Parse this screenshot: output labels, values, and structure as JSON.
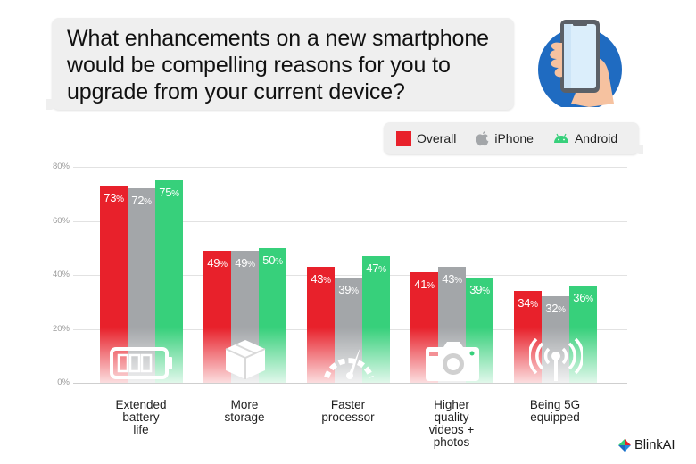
{
  "question": {
    "lines": [
      "What enhancements on a new smartphone",
      "would be compelling reasons for you to",
      "upgrade from your current device?"
    ]
  },
  "header_art": {
    "icon": "hand-holding-phone-icon",
    "circle_color": "#1f6bc1"
  },
  "legend": {
    "items": [
      {
        "label": "Overall",
        "icon": "red-square",
        "color": "#e8212b"
      },
      {
        "label": "iPhone",
        "icon": "apple-logo-icon",
        "color": "#a3a6a9"
      },
      {
        "label": "Android",
        "icon": "android-logo-icon",
        "color": "#37d07b"
      }
    ]
  },
  "colors": {
    "overall": "#e8212b",
    "iphone": "#a3a6a9",
    "android": "#37d07b",
    "grid": "#e2e2e2",
    "tick": "#9a9a9a"
  },
  "chart_data": {
    "type": "bar",
    "title": "What enhancements on a new smartphone would be compelling reasons for you to upgrade from your current device?",
    "xlabel": "",
    "ylabel": "",
    "ylim": [
      0,
      80
    ],
    "y_ticks": [
      "0%",
      "20%",
      "40%",
      "60%",
      "80%"
    ],
    "grid": true,
    "legend_position": "top-right",
    "categories": [
      "Extended battery life",
      "More storage",
      "Faster processor",
      "Higher quality videos + photos",
      "Being 5G equipped"
    ],
    "category_icons": [
      "battery-icon",
      "box-icon",
      "speedometer-icon",
      "camera-icon",
      "signal-icon"
    ],
    "series": [
      {
        "name": "Overall",
        "values": [
          73,
          49,
          43,
          41,
          34
        ]
      },
      {
        "name": "iPhone",
        "values": [
          72,
          49,
          39,
          43,
          32
        ]
      },
      {
        "name": "Android",
        "values": [
          75,
          50,
          47,
          39,
          36
        ]
      }
    ]
  },
  "labels": {
    "x": [
      [
        "Extended",
        "battery",
        "life"
      ],
      [
        "More",
        "storage"
      ],
      [
        "Faster",
        "processor"
      ],
      [
        "Higher",
        "quality",
        "videos +",
        "photos"
      ],
      [
        "Being 5G",
        "equipped"
      ]
    ],
    "bars": [
      [
        "73",
        "72",
        "75"
      ],
      [
        "49",
        "49",
        "50"
      ],
      [
        "43",
        "39",
        "47"
      ],
      [
        "41",
        "43",
        "39"
      ],
      [
        "34",
        "32",
        "36"
      ]
    ],
    "pct": "%"
  },
  "brand": {
    "name": "BlinkAI"
  }
}
